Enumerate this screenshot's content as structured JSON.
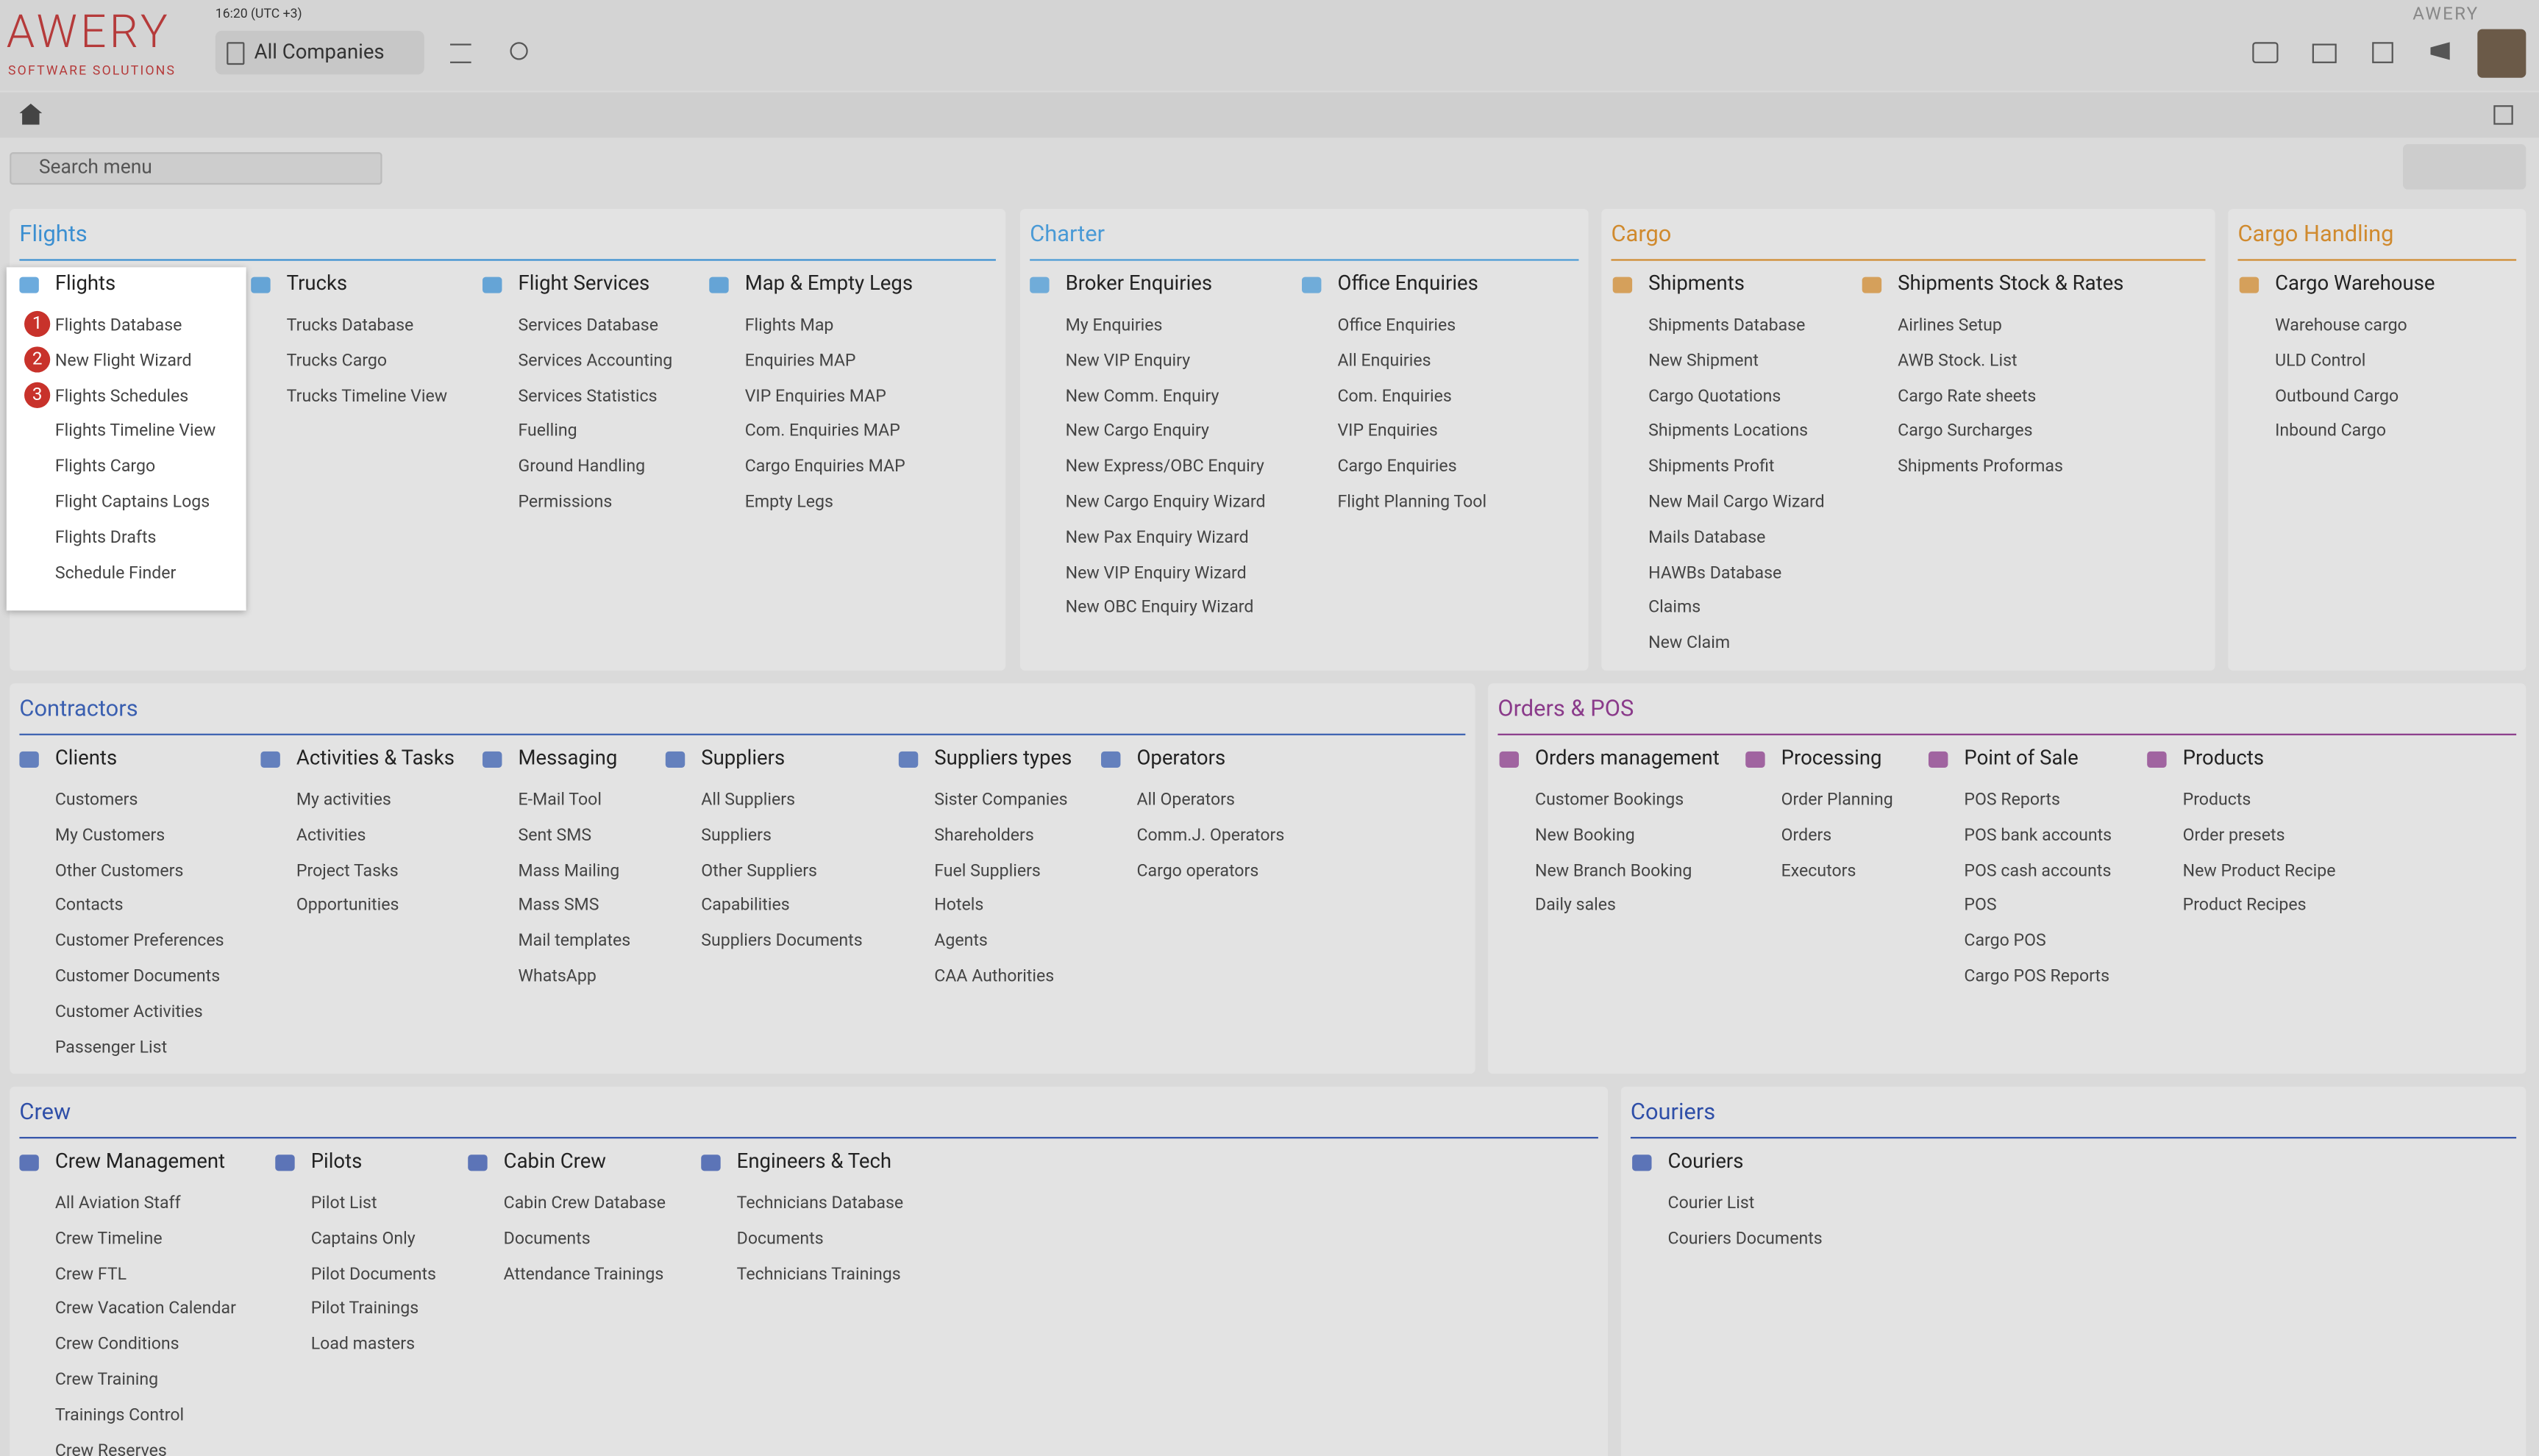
{
  "header": {
    "logo": "AWERY",
    "logo_sub": "SOFTWARE SOLUTIONS",
    "time": "16:20 (UTC +3)",
    "company": "All Companies",
    "brand_small": "AWERY"
  },
  "search": {
    "placeholder": "Search menu"
  },
  "sections": [
    {
      "title": "Flights",
      "color": "#3b8fd1",
      "groups": [
        {
          "title": "Flights",
          "items": [
            "Flights Database",
            "New Flight Wizard",
            "Flights Schedules",
            "Flights Timeline View",
            "Flights Cargo",
            "Flight Captains Logs",
            "Flights Drafts",
            "Schedule Finder"
          ],
          "badges": [
            "1",
            "2",
            "3"
          ]
        },
        {
          "title": "Trucks",
          "items": [
            "Trucks Database",
            "Trucks Cargo",
            "Trucks Timeline View"
          ]
        },
        {
          "title": "Flight Services",
          "items": [
            "Services Database",
            "Services Accounting",
            "Services Statistics",
            "Fuelling",
            "Ground Handling",
            "Permissions"
          ]
        },
        {
          "title": "Map & Empty Legs",
          "items": [
            "Flights Map",
            "Enquiries MAP",
            "VIP Enquiries MAP",
            "Com. Enquiries MAP",
            "Cargo Enquiries MAP",
            "Empty Legs"
          ]
        }
      ]
    },
    {
      "title": "Charter",
      "color": "#4a9ad6",
      "groups": [
        {
          "title": "Broker Enquiries",
          "items": [
            "My Enquiries",
            "New VIP Enquiry",
            "New Comm. Enquiry",
            "New Cargo Enquiry",
            "New Express/OBC Enquiry",
            "New Cargo Enquiry Wizard",
            "New Pax Enquiry Wizard",
            "New VIP Enquiry Wizard",
            "New OBC Enquiry Wizard"
          ]
        },
        {
          "title": "Office Enquiries",
          "items": [
            "Office Enquiries",
            "All Enquiries",
            "Com. Enquiries",
            "VIP Enquiries",
            "Cargo Enquiries",
            "Flight Planning Tool"
          ]
        }
      ]
    },
    {
      "title": "Cargo",
      "color": "#d08a2e",
      "groups": [
        {
          "title": "Shipments",
          "items": [
            "Shipments Database",
            "New Shipment",
            "Cargo Quotations",
            "Shipments Locations",
            "Shipments Profit",
            "New Mail Cargo Wizard",
            "Mails Database",
            "HAWBs Database",
            "Claims",
            "New Claim"
          ]
        },
        {
          "title": "Shipments Stock & Rates",
          "items": [
            "Airlines Setup",
            "AWB Stock. List",
            "Cargo Rate sheets",
            "Cargo Surcharges",
            "Shipments Proformas"
          ]
        }
      ]
    },
    {
      "title": "Cargo Handling",
      "color": "#d08a2e",
      "groups": [
        {
          "title": "Cargo Warehouse",
          "items": [
            "Warehouse cargo",
            "ULD Control",
            "Outbound Cargo",
            "Inbound Cargo"
          ]
        }
      ]
    },
    {
      "title": "Contractors",
      "color": "#3a5fb0",
      "groups": [
        {
          "title": "Clients",
          "items": [
            "Customers",
            "My Customers",
            "Other Customers",
            "Contacts",
            "Customer Preferences",
            "Customer Documents",
            "Customer Activities",
            "Passenger List"
          ]
        },
        {
          "title": "Activities & Tasks",
          "items": [
            "My activities",
            "Activities",
            "Project Tasks",
            "Opportunities"
          ]
        },
        {
          "title": "Messaging",
          "items": [
            "E-Mail Tool",
            "Sent SMS",
            "Mass Mailing",
            "Mass SMS",
            "Mail templates",
            "WhatsApp"
          ]
        },
        {
          "title": "Suppliers",
          "items": [
            "All Suppliers",
            "Suppliers",
            "Other Suppliers",
            "Capabilities",
            "Suppliers Documents"
          ]
        },
        {
          "title": "Suppliers types",
          "items": [
            "Sister Companies",
            "Shareholders",
            "Fuel Suppliers",
            "Hotels",
            "Agents",
            "CAA Authorities"
          ]
        },
        {
          "title": "Operators",
          "items": [
            "All Operators",
            "Comm.J. Operators",
            "Cargo operators"
          ]
        }
      ]
    },
    {
      "title": "Orders & POS",
      "color": "#8a3a8a",
      "groups": [
        {
          "title": "Orders management",
          "items": [
            "Customer Bookings",
            "New Booking",
            "New Branch Booking",
            "Daily sales"
          ]
        },
        {
          "title": "Processing",
          "items": [
            "Order Planning",
            "Orders",
            "Executors"
          ]
        },
        {
          "title": "Point of Sale",
          "items": [
            "POS Reports",
            "POS bank accounts",
            "POS cash accounts",
            "POS",
            "Cargo POS",
            "Cargo POS Reports"
          ]
        },
        {
          "title": "Products",
          "items": [
            "Products",
            "Order presets",
            "New Product Recipe",
            "Product Recipes"
          ]
        }
      ]
    },
    {
      "title": "Crew",
      "color": "#2f4fa8",
      "groups": [
        {
          "title": "Crew Management",
          "items": [
            "All Aviation Staff",
            "Crew Timeline",
            "Crew FTL",
            "Crew Vacation Calendar",
            "Crew Conditions",
            "Crew Training",
            "Trainings Control",
            "Crew Reserves"
          ]
        },
        {
          "title": "Pilots",
          "items": [
            "Pilot List",
            "Captains Only",
            "Pilot Documents",
            "Pilot Trainings",
            "Load masters"
          ]
        },
        {
          "title": "Cabin Crew",
          "items": [
            "Cabin Crew Database",
            "Documents",
            "Attendance Trainings"
          ]
        },
        {
          "title": "Engineers & Tech",
          "items": [
            "Technicians Database",
            "Documents",
            "Technicians Trainings"
          ]
        }
      ]
    },
    {
      "title": "Couriers",
      "color": "#2f4fa8",
      "groups": [
        {
          "title": "Couriers",
          "items": [
            "Courier List",
            "Couriers Documents"
          ]
        }
      ]
    }
  ]
}
